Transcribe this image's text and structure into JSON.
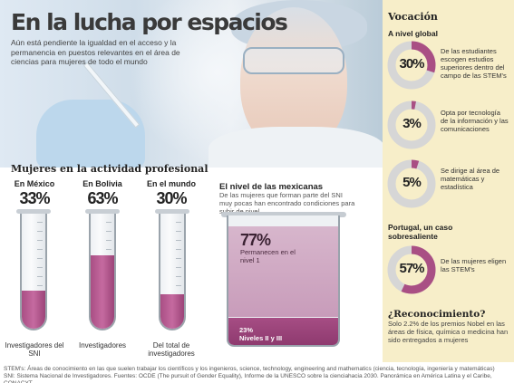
{
  "header": {
    "title": "En la lucha por espacios",
    "subtitle": "Aún está pendiente la igualdad en el acceso y la permanencia en puestos relevantes en el área de ciencias para mujeres de todo el mundo"
  },
  "professional": {
    "title": "Mujeres en la actividad profesional",
    "columns": [
      {
        "label": "En México",
        "percent": "33%",
        "value": 33,
        "caption": "Investigadores del SNI"
      },
      {
        "label": "En Bolivia",
        "percent": "63%",
        "value": 63,
        "caption": "Investigadores"
      },
      {
        "label": "En el mundo",
        "percent": "30%",
        "value": 30,
        "caption": "Del total de investigadores"
      }
    ]
  },
  "mexicanas": {
    "title": "El nivel de las mexicanas",
    "subtitle": "De las mujeres que forman parte del SNI muy pocas han encontrado condiciones para subir de nivel",
    "top_percent": "77%",
    "top_text": "Permanecen en el nivel 1",
    "top_value": 77,
    "bottom_percent": "23%",
    "bottom_text": "Niveles II y III",
    "bottom_value": 23
  },
  "sidebar": {
    "title": "Vocación",
    "global_label": "A nivel global",
    "donuts": [
      {
        "percent": "30%",
        "value": 30,
        "text": "De las estudiantes escogen estudios superiores dentro del campo de las STEM's"
      },
      {
        "percent": "3%",
        "value": 3,
        "text": "Opta por tecnología de la información y las comunicaciones"
      },
      {
        "percent": "5%",
        "value": 5,
        "text": "Se dirige al área de matemáticas y estadística"
      }
    ],
    "portugal_title": "Portugal, un caso sobresaliente",
    "portugal": {
      "percent": "57%",
      "value": 57,
      "text": "De las mujeres eligen las STEM's"
    },
    "recognition_title": "¿Reconocimiento?",
    "recognition_text": "Solo 2.2% de los premios Nobel en las áreas de física, química o medicina han sido entregados a mujeres"
  },
  "footer": {
    "line1": "STEM's: Áreas de conocimiento en las que suelen trabajar los científicos y los ingenieros, science, technology, engineering and mathematics (ciencia, tecnología, ingeniería y matemáticas)",
    "line2": "SNI: Sistema Nacional de Investigadores. Fuentes: OCDE (The pursuit of Gender Equality), Informe de la UNESCO sobre la cienciahacia 2030. Panorámica en América Latina y el Caribe, CONACYT"
  },
  "colors": {
    "accent": "#a94f84",
    "ring": "#d6d6d6",
    "sidebar": "#f7eec9"
  }
}
